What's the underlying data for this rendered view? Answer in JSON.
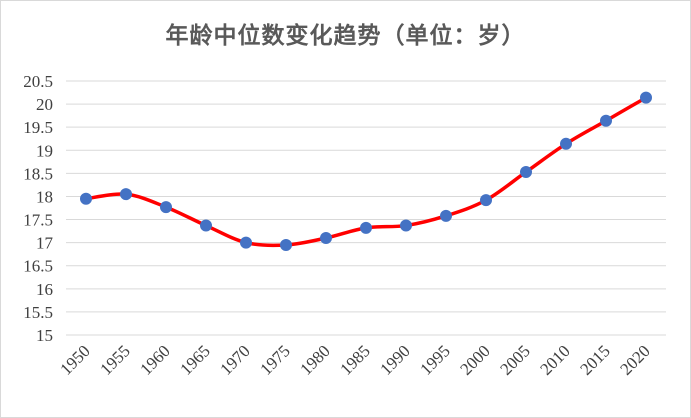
{
  "chart_data": {
    "type": "line",
    "title": "年龄中位数变化趋势（单位：岁）",
    "xlabel": "",
    "ylabel": "",
    "x": [
      "1950",
      "1955",
      "1960",
      "1965",
      "1970",
      "1975",
      "1980",
      "1985",
      "1990",
      "1995",
      "2000",
      "2005",
      "2010",
      "2015",
      "2020"
    ],
    "series": [
      {
        "values": [
          17.95,
          18.05,
          17.77,
          17.37,
          17.0,
          16.95,
          17.1,
          17.32,
          17.37,
          17.58,
          17.92,
          18.53,
          19.14,
          19.64,
          20.14
        ]
      }
    ],
    "y_ticks": [
      "15",
      "15.5",
      "16",
      "16.5",
      "17",
      "17.5",
      "18",
      "18.5",
      "19",
      "19.5",
      "20",
      "20.5"
    ],
    "ylim": [
      15,
      20.5
    ],
    "grid": true,
    "legend": "none",
    "colors": {
      "line": "#ff0000",
      "marker": "#4472c4",
      "grid": "#d9d9d9"
    }
  }
}
